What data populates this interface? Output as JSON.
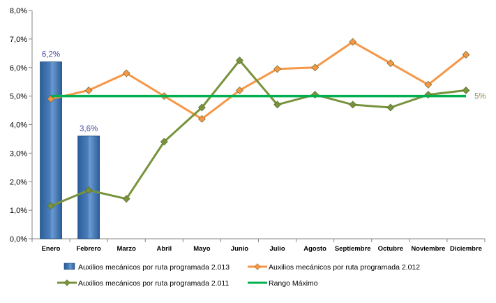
{
  "chart_data": {
    "type": "bar+line",
    "title": "",
    "xlabel": "",
    "ylabel": "",
    "categories": [
      "Enero",
      "Febrero",
      "Marzo",
      "Abril",
      "Mayo",
      "Junio",
      "Julio",
      "Agosto",
      "Septiembre",
      "Octubre",
      "Noviembre",
      "Diciembre"
    ],
    "yticks": [
      "0,0%",
      "1,0%",
      "2,0%",
      "3,0%",
      "4,0%",
      "5,0%",
      "6,0%",
      "7,0%",
      "8,0%"
    ],
    "ylim": [
      0,
      8
    ],
    "grid": false,
    "legend_position": "bottom",
    "series": [
      {
        "name": "Auxilios mecánicos por ruta programada 2.013",
        "type": "bar",
        "color": "#4a7ebb",
        "values": [
          6.2,
          3.6,
          null,
          null,
          null,
          null,
          null,
          null,
          null,
          null,
          null,
          null
        ],
        "data_labels": [
          "6,2%",
          "3,6%"
        ]
      },
      {
        "name": "Auxilios mecánicos por ruta programada 2.012",
        "type": "line",
        "marker": "diamond",
        "color": "#f79646",
        "values": [
          4.9,
          5.2,
          5.8,
          5.0,
          4.2,
          5.2,
          5.95,
          6.0,
          6.9,
          6.15,
          5.4,
          6.45
        ]
      },
      {
        "name": "Auxilios mecánicos por ruta programada 2.011",
        "type": "line",
        "marker": "diamond",
        "color": "#77933c",
        "values": [
          1.15,
          1.7,
          1.4,
          3.4,
          4.6,
          6.25,
          4.7,
          5.05,
          4.7,
          4.6,
          5.05,
          5.2
        ]
      },
      {
        "name": "Rango Máximo",
        "type": "line",
        "marker": "none",
        "color": "#00b050",
        "values": [
          5,
          5,
          5,
          5,
          5,
          5,
          5,
          5,
          5,
          5,
          5,
          5
        ],
        "end_label": "5%"
      }
    ]
  }
}
